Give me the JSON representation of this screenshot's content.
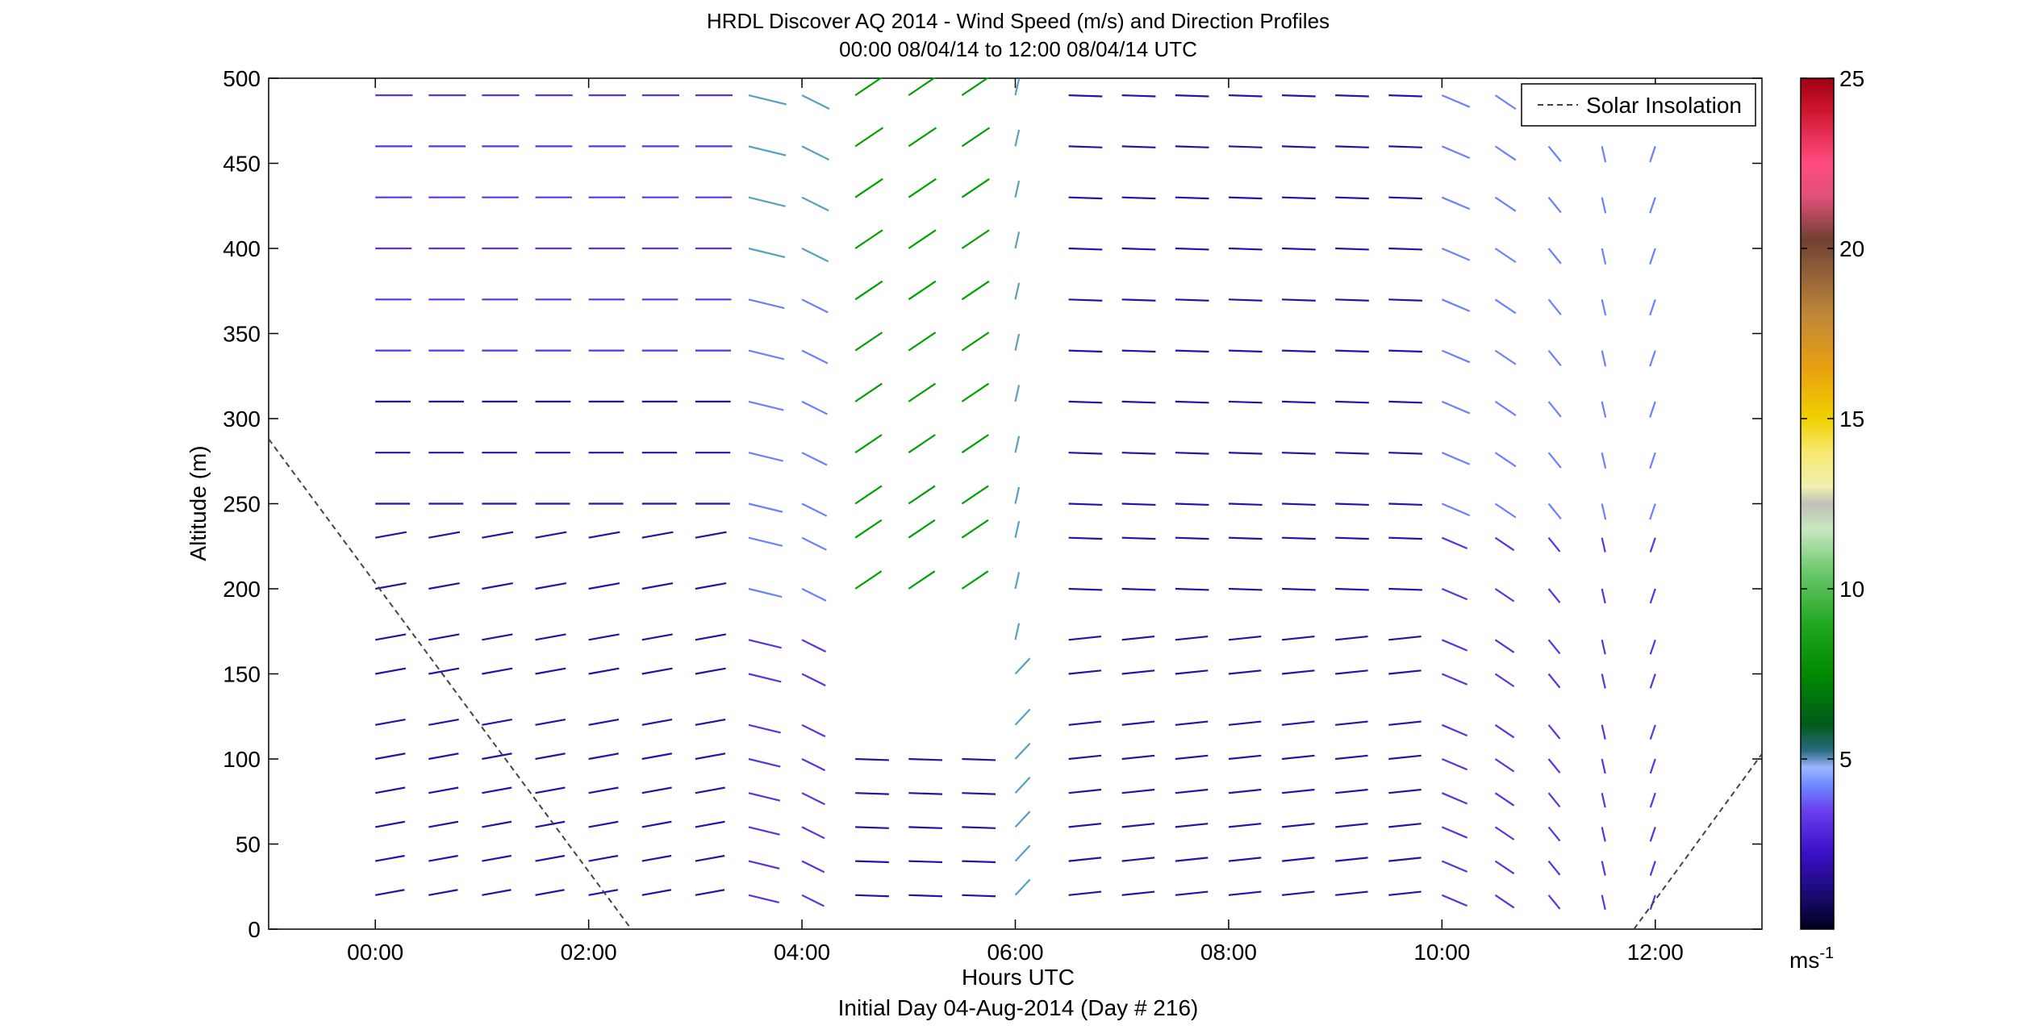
{
  "chart_data": {
    "type": "wind-barb-profile",
    "title": "HRDL Discover AQ 2014 - Wind Speed (m/s) and Direction Profiles",
    "subtitle": "00:00 08/04/14 to 12:00 08/04/14  UTC",
    "xlabel": "Hours UTC",
    "x_sublabel": "Initial Day 04-Aug-2014 (Day # 216)",
    "ylabel": "Altitude (m)",
    "xlim": [
      -1.0,
      13.0
    ],
    "ylim": [
      0,
      500
    ],
    "x_ticks": [
      0,
      2,
      4,
      6,
      8,
      10,
      12
    ],
    "x_tick_labels": [
      "00:00",
      "02:00",
      "04:00",
      "06:00",
      "08:00",
      "10:00",
      "12:00"
    ],
    "y_ticks": [
      0,
      50,
      100,
      150,
      200,
      250,
      300,
      350,
      400,
      450,
      500
    ],
    "y_tick_labels": [
      "0",
      "50",
      "100",
      "150",
      "200",
      "250",
      "300",
      "350",
      "400",
      "450",
      "500"
    ],
    "legend": {
      "label": "Solar Insolation",
      "position": "top-right"
    },
    "colorbar": {
      "ticks": [
        5,
        10,
        15,
        20,
        25
      ],
      "tick_labels": [
        "5",
        "10",
        "15",
        "20",
        "25"
      ],
      "unit": "ms",
      "unit_exp": "-1",
      "range": [
        0,
        25
      ]
    },
    "solar_insolation": {
      "segments": [
        {
          "x": [
            -1.0,
            2.4
          ],
          "y": [
            288,
            0
          ]
        },
        {
          "x": [
            11.8,
            13.0
          ],
          "y": [
            0,
            103
          ]
        }
      ]
    },
    "profile_times": [
      0.0,
      0.5,
      1.0,
      1.5,
      2.0,
      2.5,
      3.0,
      3.5,
      4.0,
      4.5,
      5.0,
      5.5,
      6.0,
      6.5,
      7.0,
      7.5,
      8.0,
      8.5,
      9.0,
      9.5,
      10.0,
      10.5,
      11.0,
      11.5,
      12.0
    ],
    "altitudes": [
      20,
      40,
      60,
      80,
      100,
      120,
      150,
      170,
      200,
      230,
      250,
      280,
      310,
      340,
      370,
      400,
      430,
      460,
      490
    ],
    "wind_speed_note": "speed in m/s",
    "direction_note": "direction in degrees (meteorological)"
  }
}
